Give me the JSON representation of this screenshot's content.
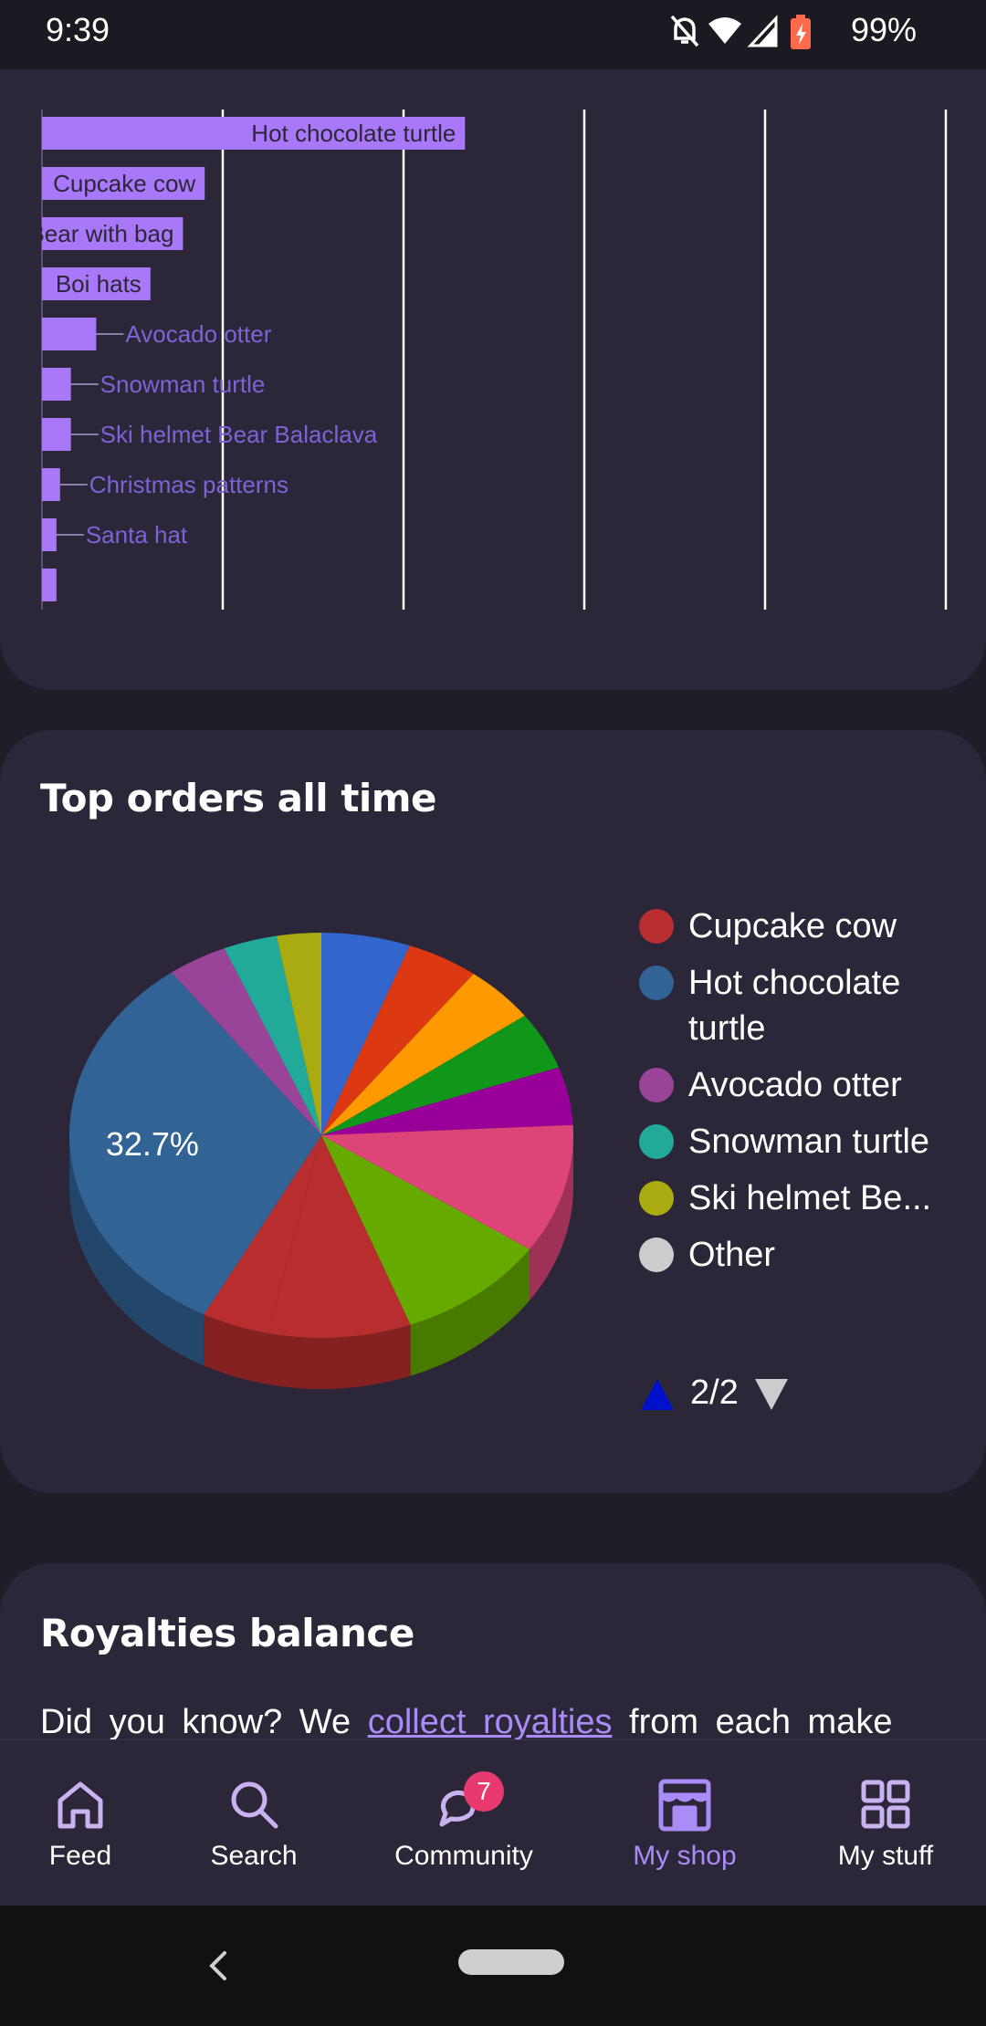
{
  "status_bar": {
    "time": "9:39",
    "battery": "99%",
    "icons": [
      "bell-off-icon",
      "wifi-icon",
      "signal-icon",
      "battery-charging-icon"
    ]
  },
  "bar_section": {
    "chart_data": {
      "type": "bar",
      "orientation": "horizontal",
      "categories": [
        "Hot chocolate turtle",
        "Cupcake cow",
        "Bear with bag",
        "Boi hats",
        "Avocado otter",
        "Snowman turtle",
        "Ski helmet Bear Balaclava",
        "Christmas patterns",
        "Santa hat",
        ""
      ],
      "values": [
        117,
        45,
        39,
        30,
        15,
        8,
        8,
        5,
        4,
        4
      ],
      "xlim": [
        0,
        250
      ],
      "grid": true,
      "color": "#a878f8"
    }
  },
  "pie_section": {
    "title": "Top orders all time",
    "chart_data": {
      "type": "pie",
      "style": "3d",
      "labels": [
        "Other 1",
        "Other 2",
        "Other 3",
        "Other 4",
        "Other 5",
        "Other 6",
        "Other 7",
        "Other 8",
        "Cupcake cow",
        "Hot chocolate turtle",
        "Avocado otter",
        "Snowman turtle",
        "Ski helmet Bear Balaclava"
      ],
      "values": [
        5.8,
        4.7,
        4.7,
        4.7,
        4.7,
        10.5,
        9.9,
        9.3,
        4.4,
        32.7,
        3.9,
        3.5,
        2.9
      ],
      "colors": [
        "#3366cc",
        "#dc3912",
        "#ff9900",
        "#109618",
        "#990099",
        "#dd4477",
        "#66aa00",
        "#b82e2e",
        "#b82e2e",
        "#316395",
        "#994499",
        "#22aa99",
        "#aaaa11"
      ],
      "visible_label": "32.7%"
    },
    "legend": [
      {
        "label": "Cupcake cow",
        "color": "#b82e2e"
      },
      {
        "label": "Hot chocolate turtle",
        "color": "#316395"
      },
      {
        "label": "Avocado otter",
        "color": "#994499"
      },
      {
        "label": "Snowman turtle",
        "color": "#22aa99"
      },
      {
        "label": "Ski helmet Be...",
        "color": "#aaaa11"
      },
      {
        "label": "Other",
        "color": "#cccccc"
      }
    ],
    "pager": "2/2",
    "pager_up_color": "#0011cc",
    "pager_down_color": "#cccccc"
  },
  "royalties": {
    "title": "Royalties balance",
    "text_before": "Did you know? We",
    "link": "collect royalties",
    "text_after": "from each make"
  },
  "bottom_nav": {
    "items": [
      {
        "label": "Feed",
        "icon": "home-icon"
      },
      {
        "label": "Search",
        "icon": "search-icon"
      },
      {
        "label": "Community",
        "icon": "chat-bubbles-icon",
        "badge": "7"
      },
      {
        "label": "My shop",
        "icon": "shop-icon",
        "active": true
      },
      {
        "label": "My stuff",
        "icon": "grid-icon"
      }
    ]
  },
  "colors": {
    "accent": "#a98cf7",
    "background": "#201c28",
    "card": "#2b2638",
    "badge": "#e83a6e"
  }
}
